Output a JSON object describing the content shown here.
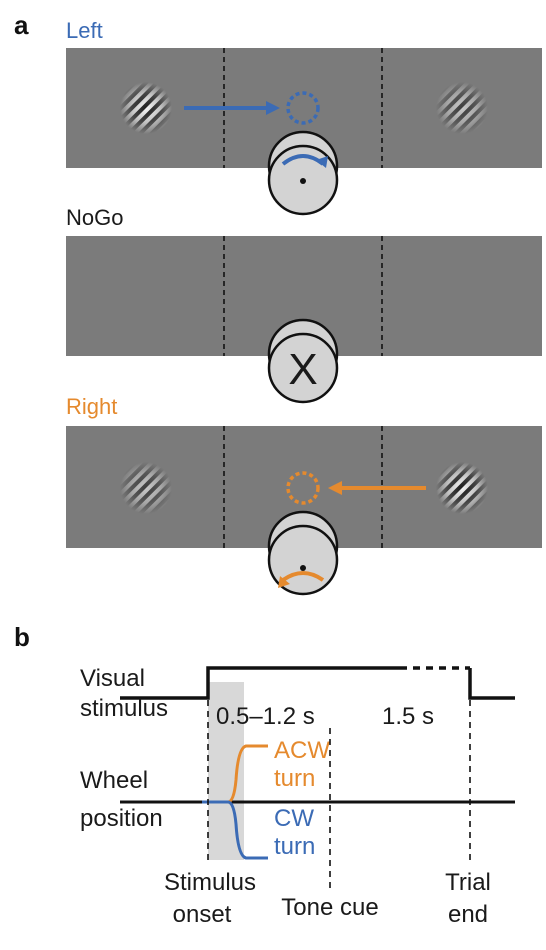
{
  "panel_a": {
    "letter": "a",
    "conditions": [
      {
        "label": "Left",
        "color": "#3b6bb5"
      },
      {
        "label": "NoGo",
        "color": "#1a1a1a",
        "wheel_mark": "X"
      },
      {
        "label": "Right",
        "color": "#e58a2e"
      }
    ]
  },
  "panel_b": {
    "letter": "b",
    "visual_label_1": "Visual",
    "visual_label_2": "stimulus",
    "wheel_label_1": "Wheel",
    "wheel_label_2": "position",
    "interval_1": "0.5–1.2 s",
    "interval_2": "1.5 s",
    "acw_1": "ACW",
    "acw_2": "turn",
    "cw_1": "CW",
    "cw_2": "turn",
    "stim_onset_1": "Stimulus",
    "stim_onset_2": "onset",
    "tone_cue": "Tone cue",
    "trial_end_1": "Trial",
    "trial_end_2": "end"
  },
  "colors": {
    "screen_gray": "#7b7b7b",
    "blue": "#3b6bb5",
    "orange": "#e58a2e",
    "shade": "#d8d8d8"
  },
  "icons": [
    "gabor-stimulus-icon",
    "target-circle-icon",
    "wheel-icon",
    "arrow-icon"
  ]
}
